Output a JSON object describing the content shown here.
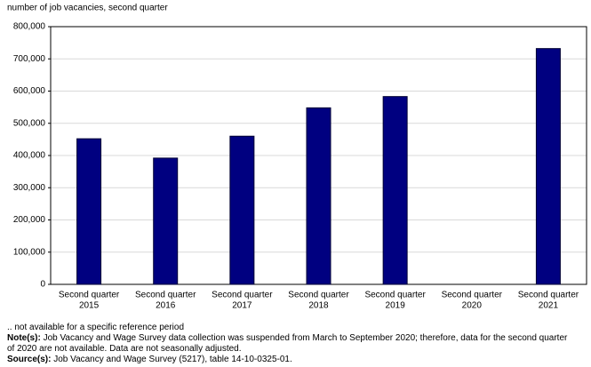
{
  "chart_data": {
    "type": "bar",
    "y_label": "number of job vacancies, second quarter",
    "categories": [
      [
        "Second quarter",
        "2015"
      ],
      [
        "Second quarter",
        "2016"
      ],
      [
        "Second quarter",
        "2017"
      ],
      [
        "Second quarter",
        "2018"
      ],
      [
        "Second quarter",
        "2019"
      ],
      [
        "Second quarter",
        "2020"
      ],
      [
        "Second quarter",
        "2021"
      ]
    ],
    "values": [
      452000,
      392000,
      460000,
      548000,
      583000,
      null,
      732000
    ],
    "color": "#000080",
    "ylim": [
      0,
      800000
    ],
    "yticks": [
      0,
      {
        "value": 100000,
        "label": "100,000"
      },
      {
        "value": 200000,
        "label": "200,000"
      },
      {
        "value": 300000,
        "label": "300,000"
      },
      {
        "value": 400000,
        "label": "400,000"
      },
      {
        "value": 500000,
        "label": "500,000"
      },
      {
        "value": 600000,
        "label": "600,000"
      },
      {
        "value": 700000,
        "label": "700,000"
      },
      {
        "value": 800000,
        "label": "800,000"
      }
    ],
    "grid": true
  },
  "footer": {
    "symbol_note": ".. not available for a specific reference period",
    "notes": {
      "label": "Note(s):",
      "text": "Job Vacancy and Wage Survey data collection was suspended from March to September 2020; therefore, data for the second quarter of 2020 are not available. Data are not seasonally adjusted."
    },
    "source": {
      "label": "Source(s):",
      "text": "Job Vacancy and Wage Survey (5217), table 14-10-0325-01."
    }
  }
}
